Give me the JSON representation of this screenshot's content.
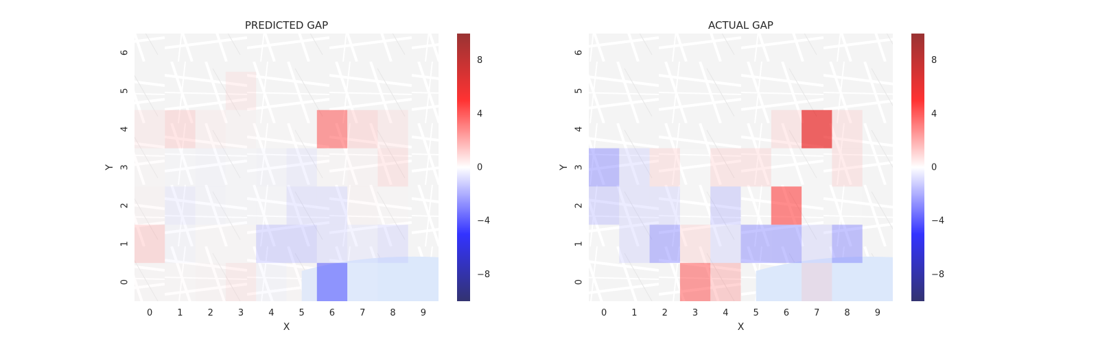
{
  "chart_data": [
    {
      "type": "heatmap",
      "title": "PREDICTED GAP",
      "xlabel": "X",
      "ylabel": "Y",
      "x_ticks": [
        "0",
        "1",
        "2",
        "3",
        "4",
        "5",
        "6",
        "7",
        "8",
        "9"
      ],
      "y_ticks": [
        "0",
        "1",
        "2",
        "3",
        "4",
        "5",
        "6"
      ],
      "value_range": [
        -10,
        10
      ],
      "colormap": "seismic",
      "background": "street map",
      "cells": [
        {
          "x": 0,
          "y": 1,
          "v": 2.0
        },
        {
          "x": 1,
          "y": 1,
          "v": -0.5
        },
        {
          "x": 2,
          "y": 1,
          "v": 0.3
        },
        {
          "x": 3,
          "y": 1,
          "v": 0.3
        },
        {
          "x": 4,
          "y": 1,
          "v": -2.0
        },
        {
          "x": 5,
          "y": 1,
          "v": -2.0
        },
        {
          "x": 6,
          "y": 1,
          "v": -1.5
        },
        {
          "x": 7,
          "y": 1,
          "v": -1.0
        },
        {
          "x": 8,
          "y": 1,
          "v": -1.5
        },
        {
          "x": 0,
          "y": 2,
          "v": 0.5
        },
        {
          "x": 1,
          "y": 2,
          "v": -1.0
        },
        {
          "x": 2,
          "y": 2,
          "v": -0.5
        },
        {
          "x": 3,
          "y": 2,
          "v": -0.3
        },
        {
          "x": 4,
          "y": 2,
          "v": -0.3
        },
        {
          "x": 5,
          "y": 2,
          "v": -1.5
        },
        {
          "x": 6,
          "y": 2,
          "v": -1.5
        },
        {
          "x": 7,
          "y": 2,
          "v": 0.5
        },
        {
          "x": 8,
          "y": 2,
          "v": 0.3
        },
        {
          "x": 0,
          "y": 3,
          "v": 0.3
        },
        {
          "x": 1,
          "y": 3,
          "v": -0.3
        },
        {
          "x": 2,
          "y": 3,
          "v": -0.5
        },
        {
          "x": 3,
          "y": 3,
          "v": -0.3
        },
        {
          "x": 4,
          "y": 3,
          "v": -0.5
        },
        {
          "x": 5,
          "y": 3,
          "v": -1.0
        },
        {
          "x": 6,
          "y": 3,
          "v": 0.3
        },
        {
          "x": 7,
          "y": 3,
          "v": 0.5
        },
        {
          "x": 8,
          "y": 3,
          "v": 1.5
        },
        {
          "x": 0,
          "y": 4,
          "v": 1.0
        },
        {
          "x": 1,
          "y": 4,
          "v": 1.8
        },
        {
          "x": 2,
          "y": 4,
          "v": 0.8
        },
        {
          "x": 3,
          "y": 4,
          "v": 0.5
        },
        {
          "x": 4,
          "y": 4,
          "v": 0.2
        },
        {
          "x": 5,
          "y": 4,
          "v": 0.2
        },
        {
          "x": 6,
          "y": 4,
          "v": 4.0
        },
        {
          "x": 7,
          "y": 4,
          "v": 1.8
        },
        {
          "x": 8,
          "y": 4,
          "v": 1.2
        },
        {
          "x": 3,
          "y": 5,
          "v": 1.2
        },
        {
          "x": 0,
          "y": 0,
          "v": 0.3
        },
        {
          "x": 1,
          "y": 0,
          "v": 0.3
        },
        {
          "x": 2,
          "y": 0,
          "v": 0.5
        },
        {
          "x": 3,
          "y": 0,
          "v": 1.2
        },
        {
          "x": 4,
          "y": 0,
          "v": -0.5
        },
        {
          "x": 5,
          "y": 0,
          "v": 0.3
        },
        {
          "x": 6,
          "y": 0,
          "v": -4.0
        },
        {
          "x": 7,
          "y": 0,
          "v": -0.3
        }
      ],
      "colorbar_ticks": [
        8,
        4,
        0,
        -4,
        -8
      ]
    },
    {
      "type": "heatmap",
      "title": "ACTUAL GAP",
      "xlabel": "X",
      "ylabel": "Y",
      "x_ticks": [
        "0",
        "1",
        "2",
        "3",
        "4",
        "5",
        "6",
        "7",
        "8",
        "9"
      ],
      "y_ticks": [
        "0",
        "1",
        "2",
        "3",
        "4",
        "5",
        "6"
      ],
      "value_range": [
        -10,
        10
      ],
      "colormap": "seismic",
      "background": "street map",
      "cells": [
        {
          "x": 0,
          "y": 1,
          "v": 0
        },
        {
          "x": 1,
          "y": 1,
          "v": -1.5
        },
        {
          "x": 2,
          "y": 1,
          "v": -3.0
        },
        {
          "x": 3,
          "y": 1,
          "v": 1.5
        },
        {
          "x": 4,
          "y": 1,
          "v": -1.5
        },
        {
          "x": 5,
          "y": 1,
          "v": -3.0
        },
        {
          "x": 6,
          "y": 1,
          "v": -3.0
        },
        {
          "x": 7,
          "y": 1,
          "v": -1.5
        },
        {
          "x": 8,
          "y": 1,
          "v": -3.0
        },
        {
          "x": 0,
          "y": 2,
          "v": -2.0
        },
        {
          "x": 1,
          "y": 2,
          "v": -1.5
        },
        {
          "x": 2,
          "y": 2,
          "v": -1.5
        },
        {
          "x": 3,
          "y": 2,
          "v": 0
        },
        {
          "x": 4,
          "y": 2,
          "v": -2.0
        },
        {
          "x": 5,
          "y": 2,
          "v": 0
        },
        {
          "x": 6,
          "y": 2,
          "v": 4.5
        },
        {
          "x": 7,
          "y": 2,
          "v": 0
        },
        {
          "x": 8,
          "y": 2,
          "v": 0
        },
        {
          "x": 0,
          "y": 3,
          "v": -3.0
        },
        {
          "x": 1,
          "y": 3,
          "v": -1.5
        },
        {
          "x": 2,
          "y": 3,
          "v": 1.5
        },
        {
          "x": 3,
          "y": 3,
          "v": 0
        },
        {
          "x": 4,
          "y": 3,
          "v": 1.5
        },
        {
          "x": 5,
          "y": 3,
          "v": 1.5
        },
        {
          "x": 6,
          "y": 3,
          "v": 0
        },
        {
          "x": 7,
          "y": 3,
          "v": 0
        },
        {
          "x": 8,
          "y": 3,
          "v": 1.5
        },
        {
          "x": 6,
          "y": 4,
          "v": 1.5
        },
        {
          "x": 7,
          "y": 4,
          "v": 6.0
        },
        {
          "x": 8,
          "y": 4,
          "v": 1.5
        },
        {
          "x": 3,
          "y": 0,
          "v": 4.0
        },
        {
          "x": 4,
          "y": 0,
          "v": 2.5
        },
        {
          "x": 7,
          "y": 0,
          "v": 1.5
        }
      ],
      "colorbar_ticks": [
        8,
        4,
        0,
        -4,
        -8
      ]
    }
  ]
}
